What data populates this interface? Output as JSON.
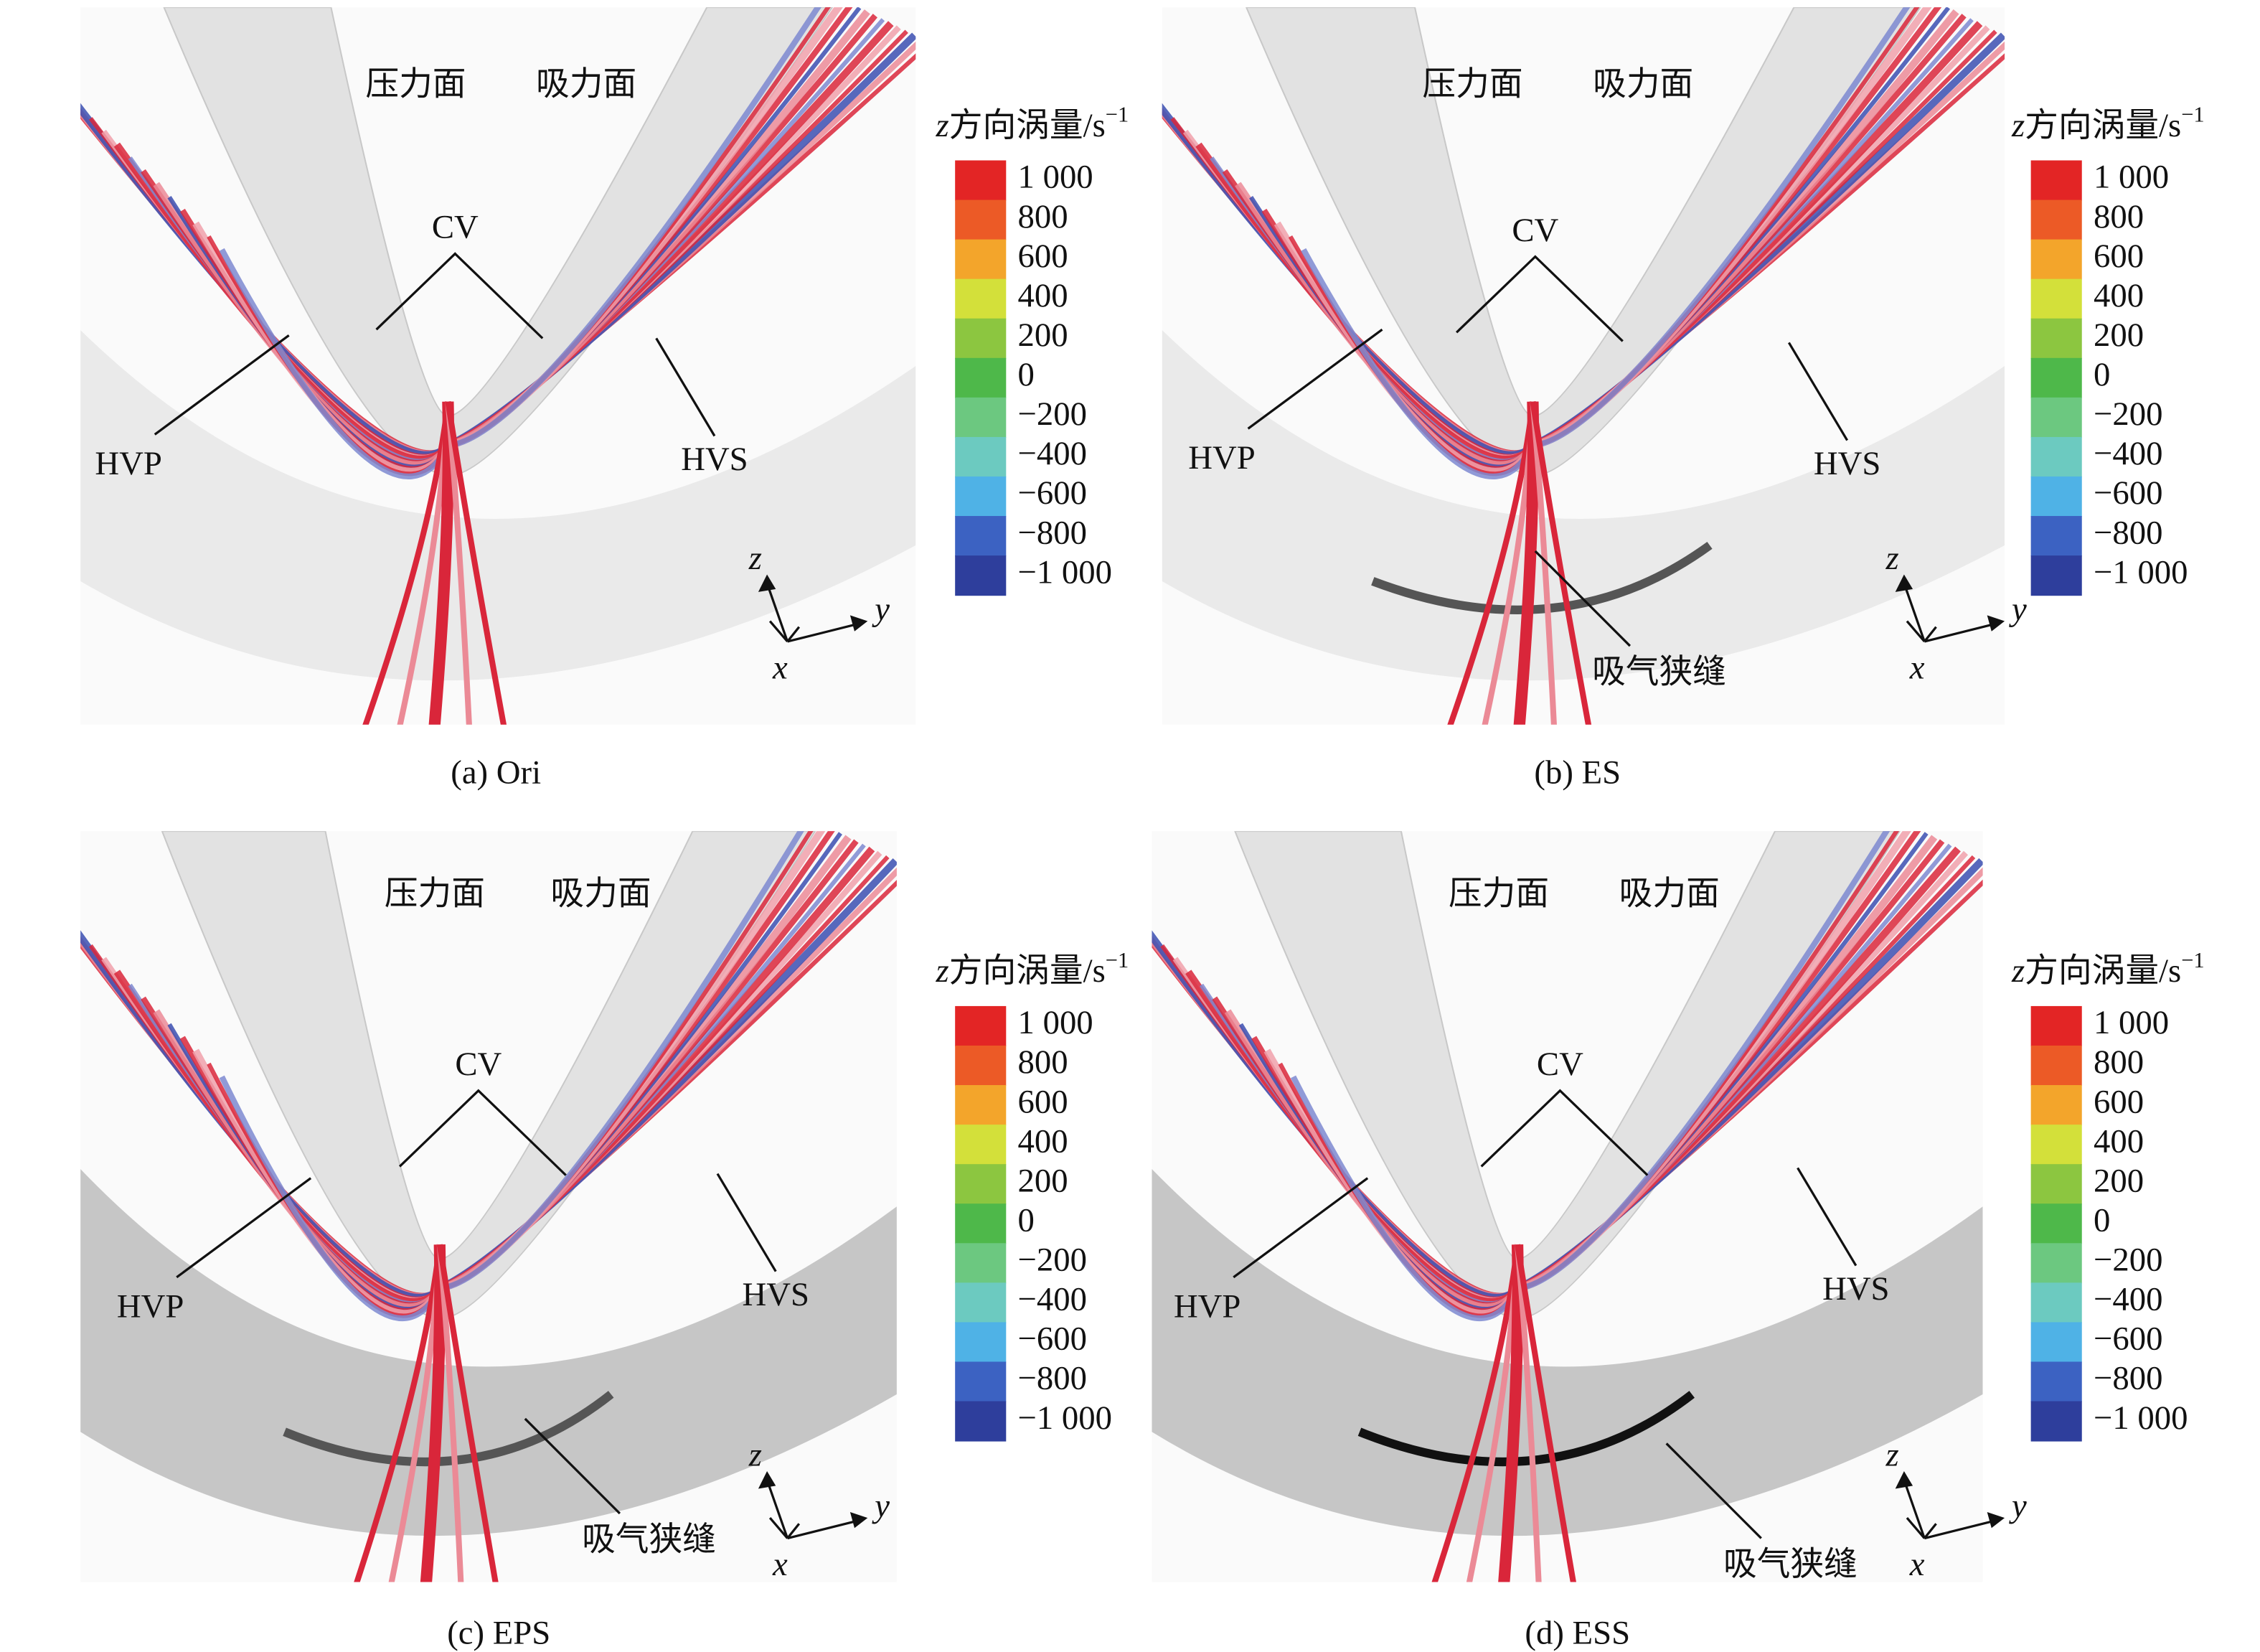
{
  "panels": [
    {
      "caption": "(a) Ori",
      "pressure": "压力面",
      "suction": "吸力面",
      "cv": "CV",
      "hvp": "HVP",
      "hvs": "HVS"
    },
    {
      "caption": "(b) ES",
      "pressure": "压力面",
      "suction": "吸力面",
      "cv": "CV",
      "hvp": "HVP",
      "hvs": "HVS",
      "slit": "吸气狭缝"
    },
    {
      "caption": "(c) EPS",
      "pressure": "压力面",
      "suction": "吸力面",
      "cv": "CV",
      "hvp": "HVP",
      "hvs": "HVS",
      "slit": "吸气狭缝"
    },
    {
      "caption": "(d) ESS",
      "pressure": "压力面",
      "suction": "吸力面",
      "cv": "CV",
      "hvp": "HVP",
      "hvs": "HVS",
      "slit": "吸气狭缝"
    }
  ],
  "colorbar": {
    "title_var": "z",
    "title_text": "方向涡量/s",
    "title_sup": "−1",
    "labels": [
      "1 000",
      "800",
      "600",
      "400",
      "200",
      "0",
      "−200",
      "−400",
      "−600",
      "−800",
      "−1 000"
    ],
    "colors": [
      "#e32525",
      "#ec5a26",
      "#f3a52b",
      "#d3e03a",
      "#8cc640",
      "#4eb84a",
      "#6cc880",
      "#6ccac0",
      "#4fb2e6",
      "#3c62c2",
      "#2e3e9c"
    ]
  },
  "axes": {
    "z": "z",
    "y": "y",
    "x": "x"
  }
}
